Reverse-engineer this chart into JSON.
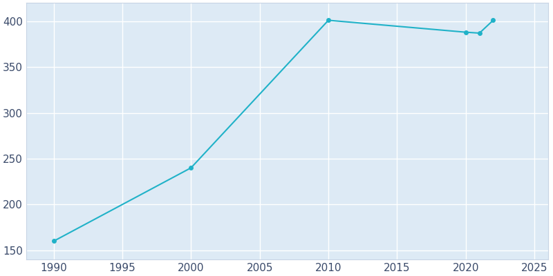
{
  "years": [
    1990,
    2000,
    2010,
    2020,
    2021,
    2022
  ],
  "population": [
    160,
    240,
    401,
    388,
    387,
    401
  ],
  "line_color": "#20B2C8",
  "marker_color": "#20B2C8",
  "outer_bg_color": "#FFFFFF",
  "plot_bg_color": "#DDEAF5",
  "grid_color": "#FFFFFF",
  "xlim": [
    1988,
    2026
  ],
  "ylim": [
    140,
    420
  ],
  "xticks": [
    1990,
    1995,
    2000,
    2005,
    2010,
    2015,
    2020,
    2025
  ],
  "yticks": [
    150,
    200,
    250,
    300,
    350,
    400
  ],
  "tick_color": "#3A4A6A",
  "spine_color": "#C8D4E4",
  "tick_labelsize": 11
}
